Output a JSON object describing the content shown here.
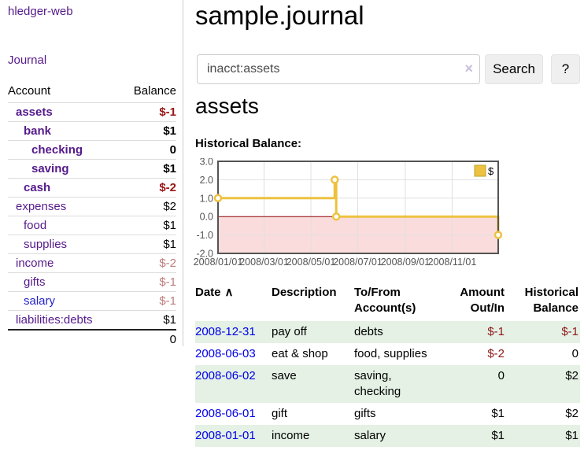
{
  "app": {
    "brand": "hledger-web"
  },
  "colors": {
    "link_purple": "#551a8b",
    "link_blue": "#0000ee",
    "negative_strong": "#961515",
    "negative_soft": "#c07b7b",
    "row_green": "#e4f1e4",
    "series_yellow": "#edc240"
  },
  "sidebar": {
    "journal_link": "Journal",
    "accounts": {
      "header_account": "Account",
      "header_balance": "Balance",
      "rows": [
        {
          "account": "assets",
          "balance": "$-1",
          "cls": "ind0 bold",
          "bal_cls": "neg-strong"
        },
        {
          "account": "bank",
          "balance": "$1",
          "cls": "ind1 bold"
        },
        {
          "account": "checking",
          "balance": "0",
          "cls": "ind2 bold"
        },
        {
          "account": "saving",
          "balance": "$1",
          "cls": "ind2 bold"
        },
        {
          "account": "cash",
          "balance": "$-2",
          "cls": "ind1 bold",
          "bal_cls": "neg-strong"
        },
        {
          "account": "expenses",
          "balance": "$2",
          "cls": "ind0"
        },
        {
          "account": "food",
          "balance": "$1",
          "cls": "ind1"
        },
        {
          "account": "supplies",
          "balance": "$1",
          "cls": "ind1"
        },
        {
          "account": "income",
          "balance": "$-2",
          "cls": "ind0",
          "bal_cls": "neg-soft"
        },
        {
          "account": "gifts",
          "balance": "$-1",
          "cls": "ind1",
          "bal_cls": "neg-soft"
        },
        {
          "account": "salary",
          "balance": "$-1",
          "cls": "ind1",
          "link_cls": "blue",
          "bal_cls": "neg-soft"
        },
        {
          "account": "liabilities:debts",
          "balance": "$1",
          "cls": "ind0"
        }
      ],
      "total": "0"
    }
  },
  "main": {
    "title": "sample.journal",
    "search": {
      "value": "inacct:assets",
      "clear_icon": "×",
      "button_label": "Search",
      "help_label": "?"
    },
    "account_heading": "assets",
    "chart_title": "Historical Balance:",
    "register": {
      "headers": {
        "date": "Date",
        "description": "Description",
        "accounts": "To/From Account(s)",
        "amount": "Amount Out/In",
        "balance": "Historical Balance"
      },
      "sort_icon": "∧",
      "rows": [
        {
          "date": "2008-12-31",
          "description": "pay off",
          "accounts": "debts",
          "amount": "$-1",
          "balance": "$-1",
          "cls": "alt",
          "amount_cls": "neg",
          "balance_cls": "neg"
        },
        {
          "date": "2008-06-03",
          "description": "eat & shop",
          "accounts": "food, supplies",
          "amount": "$-2",
          "balance": "0",
          "amount_cls": "neg"
        },
        {
          "date": "2008-06-02",
          "description": "save",
          "accounts": "saving, checking",
          "amount": "0",
          "balance": "$2",
          "cls": "alt"
        },
        {
          "date": "2008-06-01",
          "description": "gift",
          "accounts": "gifts",
          "amount": "$1",
          "balance": "$2"
        },
        {
          "date": "2008-01-01",
          "description": "income",
          "accounts": "salary",
          "amount": "$1",
          "balance": "$1",
          "cls": "alt"
        }
      ]
    }
  },
  "chart_data": {
    "type": "line",
    "title": "Historical Balance",
    "step": true,
    "x_range": [
      "2008-01-01",
      "2008-12-31"
    ],
    "ylim": [
      -2,
      3
    ],
    "y_ticks": [
      "3.0",
      "2.0",
      "1.0",
      "0.0",
      "-1.0",
      "-2.0"
    ],
    "x_ticks": [
      "2008/01/01",
      "2008/03/01",
      "2008/05/01",
      "2008/07/01",
      "2008/09/01",
      "2008/11/01"
    ],
    "series": [
      {
        "name": "$",
        "color": "#edc240",
        "points": [
          [
            "2008-01-01",
            1
          ],
          [
            "2008-06-01",
            2
          ],
          [
            "2008-06-03",
            0
          ],
          [
            "2008-12-31",
            -1
          ]
        ]
      }
    ],
    "legend_position": "top-right",
    "grid": true,
    "negative_region_color": "#fbdcdc",
    "zero_line_color": "#8b0000",
    "border_color": "#545454"
  }
}
